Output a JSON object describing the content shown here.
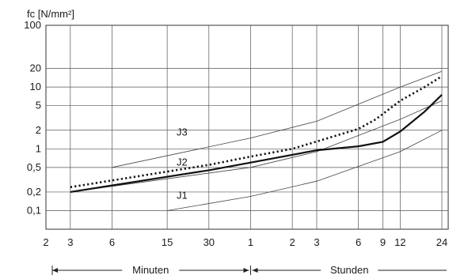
{
  "chart_data": {
    "type": "line",
    "ylabel": "fᴄ [N/mm²]",
    "y_scale": "log",
    "ylim": [
      0.05,
      100
    ],
    "y_ticks": [
      "100",
      "20",
      "10",
      "5",
      "2",
      "1",
      "0,5",
      "0,2",
      "0,1"
    ],
    "y_tick_values": [
      100,
      20,
      10,
      5,
      2,
      1,
      0.5,
      0.2,
      0.1
    ],
    "x_scale": "log",
    "x_unit": "minutes",
    "x_ticks": [
      "2",
      "3",
      "6",
      "15",
      "30",
      "1",
      "2",
      "3",
      "6",
      "9",
      "12",
      "24"
    ],
    "x_tick_values_minutes": [
      2,
      3,
      6,
      15,
      30,
      60,
      120,
      180,
      360,
      540,
      720,
      1440
    ],
    "x_range_labels": [
      {
        "text": "Minuten",
        "from_minutes": 2,
        "to_minutes": 60
      },
      {
        "text": "Stunden",
        "from_minutes": 60,
        "to_minutes": 1440
      }
    ],
    "grid": true,
    "series": [
      {
        "name": "J3",
        "style": "thin",
        "x": [
          6,
          60,
          180,
          720,
          1440
        ],
        "y": [
          0.5,
          1.5,
          2.8,
          10,
          18
        ]
      },
      {
        "name": "J2",
        "style": "thin",
        "x": [
          3,
          60,
          180,
          720,
          1440
        ],
        "y": [
          0.2,
          0.5,
          0.9,
          3,
          6
        ]
      },
      {
        "name": "J1",
        "style": "thin",
        "x": [
          15,
          60,
          180,
          720,
          1440
        ],
        "y": [
          0.1,
          0.17,
          0.3,
          0.9,
          2
        ]
      },
      {
        "name": "",
        "style": "dotted",
        "x": [
          3,
          30,
          60,
          120,
          360,
          480,
          720,
          1080,
          1440
        ],
        "y": [
          0.24,
          0.55,
          0.75,
          1.0,
          2.1,
          3,
          6,
          10,
          15
        ]
      },
      {
        "name": "",
        "style": "solid-thick",
        "x": [
          3,
          30,
          60,
          180,
          360,
          540,
          720,
          1080,
          1440
        ],
        "y": [
          0.2,
          0.45,
          0.6,
          0.95,
          1.1,
          1.3,
          1.9,
          4,
          7.5
        ]
      }
    ]
  }
}
